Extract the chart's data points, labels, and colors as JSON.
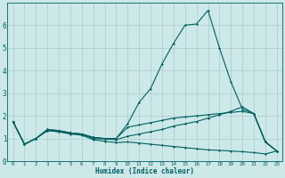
{
  "xlabel": "Humidex (Indice chaleur)",
  "bg_color": "#cce8e8",
  "line_color": "#006060",
  "grid_color": "#aacccc",
  "xlim": [
    -0.5,
    23.5
  ],
  "ylim": [
    0,
    7
  ],
  "xticks": [
    0,
    1,
    2,
    3,
    4,
    5,
    6,
    7,
    8,
    9,
    10,
    11,
    12,
    13,
    14,
    15,
    16,
    17,
    18,
    19,
    20,
    21,
    22,
    23
  ],
  "yticks": [
    0,
    1,
    2,
    3,
    4,
    5,
    6
  ],
  "line1_x": [
    0,
    1,
    2,
    3,
    4,
    5,
    6,
    7,
    8,
    9,
    10,
    11,
    12,
    13,
    14,
    15,
    16,
    17,
    18,
    19,
    20,
    21,
    22,
    23
  ],
  "line1_y": [
    1.75,
    0.75,
    1.0,
    1.4,
    1.35,
    1.25,
    1.2,
    1.05,
    1.0,
    1.0,
    1.65,
    2.6,
    3.2,
    4.3,
    5.2,
    6.0,
    6.05,
    6.65,
    5.0,
    3.5,
    2.3,
    2.1,
    0.85,
    0.45
  ],
  "line2_x": [
    0,
    1,
    2,
    3,
    4,
    5,
    6,
    7,
    8,
    9,
    10,
    11,
    12,
    13,
    14,
    15,
    16,
    17,
    18,
    19,
    20,
    21,
    22,
    23
  ],
  "line2_y": [
    1.75,
    0.75,
    1.0,
    1.4,
    1.35,
    1.25,
    1.2,
    1.05,
    1.0,
    1.0,
    1.5,
    1.6,
    1.7,
    1.8,
    1.9,
    1.95,
    2.0,
    2.05,
    2.1,
    2.15,
    2.2,
    2.1,
    0.85,
    0.45
  ],
  "line3_x": [
    0,
    1,
    2,
    3,
    4,
    5,
    6,
    7,
    8,
    9,
    10,
    11,
    12,
    13,
    14,
    15,
    16,
    17,
    18,
    19,
    20,
    21,
    22,
    23
  ],
  "line3_y": [
    1.75,
    0.75,
    1.0,
    1.35,
    1.3,
    1.22,
    1.18,
    1.0,
    0.98,
    0.95,
    1.1,
    1.2,
    1.3,
    1.4,
    1.55,
    1.65,
    1.75,
    1.9,
    2.05,
    2.2,
    2.4,
    2.1,
    0.85,
    0.45
  ],
  "line4_x": [
    0,
    1,
    2,
    3,
    4,
    5,
    6,
    7,
    8,
    9,
    10,
    11,
    12,
    13,
    14,
    15,
    16,
    17,
    18,
    19,
    20,
    21,
    22,
    23
  ],
  "line4_y": [
    1.75,
    0.75,
    1.0,
    1.35,
    1.3,
    1.2,
    1.15,
    0.95,
    0.88,
    0.82,
    0.85,
    0.8,
    0.75,
    0.7,
    0.65,
    0.6,
    0.55,
    0.5,
    0.48,
    0.45,
    0.42,
    0.38,
    0.32,
    0.45
  ]
}
